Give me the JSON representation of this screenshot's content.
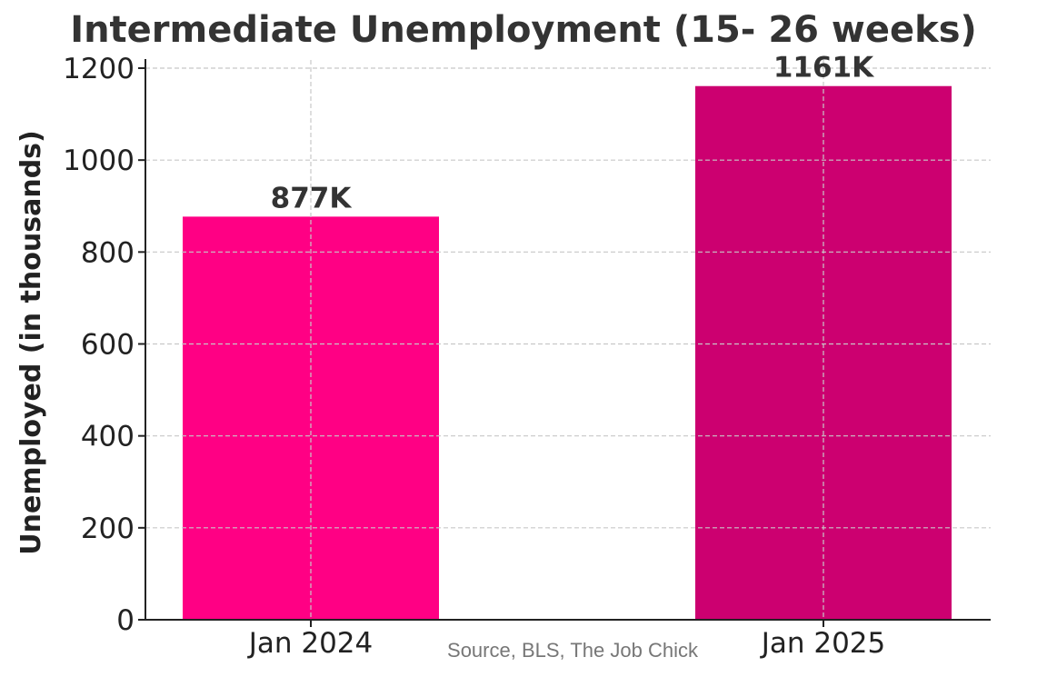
{
  "chart_data": {
    "type": "bar",
    "title": "Intermediate Unemployment (15- 26 weeks)",
    "xlabel": "",
    "ylabel": "Unemployed (in thousands)",
    "categories": [
      "Jan 2024",
      "Jan 2025"
    ],
    "values": [
      877,
      1161
    ],
    "value_labels": [
      "877K",
      "1161K"
    ],
    "colors": [
      "#ff0084",
      "#cc0070"
    ],
    "ylim": [
      0,
      1200
    ],
    "yticks": [
      0,
      200,
      400,
      600,
      800,
      1000,
      1200
    ],
    "grid": true,
    "source_note": "Source, BLS, The Job Chick"
  }
}
